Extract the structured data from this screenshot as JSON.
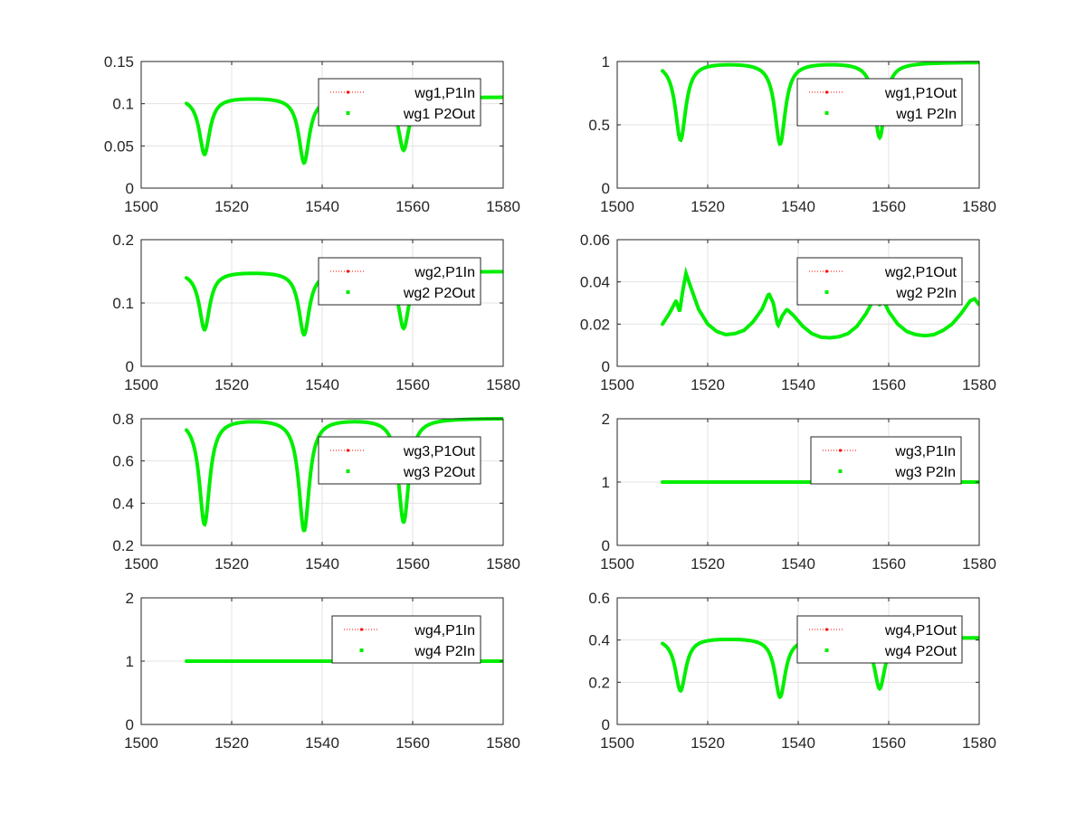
{
  "chart_data": [
    {
      "type": "line",
      "grid": true,
      "legend_position": "top-right",
      "xlim": [
        1500,
        1580
      ],
      "ylim": [
        0,
        0.15
      ],
      "xticks": [
        1500,
        1520,
        1540,
        1560,
        1580
      ],
      "xtick_labels": [
        "1500",
        "1520",
        "1540",
        "1560",
        "1580"
      ],
      "yticks": [
        0,
        0.05,
        0.1,
        0.15
      ],
      "ytick_labels": [
        "0",
        "0.05",
        "0.1",
        "0.15"
      ],
      "x_range": [
        1510,
        1580
      ],
      "base": 0.108,
      "shape": "dips",
      "dips": [
        {
          "x": 1514,
          "y": 0.04
        },
        {
          "x": 1536,
          "y": 0.03
        },
        {
          "x": 1558,
          "y": 0.045
        }
      ],
      "series": [
        {
          "name": "wg1,P1In",
          "color": "#ff0000",
          "style": "dotted"
        },
        {
          "name": "wg1 P2Out",
          "color": "#00ee00",
          "style": "markers"
        }
      ]
    },
    {
      "type": "line",
      "grid": true,
      "legend_position": "top-right",
      "xlim": [
        1500,
        1580
      ],
      "ylim": [
        0,
        1
      ],
      "xticks": [
        1500,
        1520,
        1540,
        1560,
        1580
      ],
      "xtick_labels": [
        "1500",
        "1520",
        "1540",
        "1560",
        "1580"
      ],
      "yticks": [
        0,
        0.5,
        1
      ],
      "ytick_labels": [
        "0",
        "0.5",
        "1"
      ],
      "x_range": [
        1510,
        1580
      ],
      "base": 0.995,
      "shape": "dips",
      "dips": [
        {
          "x": 1514,
          "y": 0.38
        },
        {
          "x": 1536,
          "y": 0.35
        },
        {
          "x": 1558,
          "y": 0.4
        }
      ],
      "series": [
        {
          "name": "wg1,P1Out",
          "color": "#ff0000",
          "style": "dotted"
        },
        {
          "name": "wg1 P2In",
          "color": "#00ee00",
          "style": "markers"
        }
      ]
    },
    {
      "type": "line",
      "grid": true,
      "legend_position": "top-right",
      "xlim": [
        1500,
        1580
      ],
      "ylim": [
        0,
        0.2
      ],
      "xticks": [
        1500,
        1520,
        1540,
        1560,
        1580
      ],
      "xtick_labels": [
        "1500",
        "1520",
        "1540",
        "1560",
        "1580"
      ],
      "yticks": [
        0,
        0.1,
        0.2
      ],
      "ytick_labels": [
        "0",
        "0.1",
        "0.2"
      ],
      "x_range": [
        1510,
        1580
      ],
      "base": 0.15,
      "shape": "dips",
      "dips": [
        {
          "x": 1514,
          "y": 0.058
        },
        {
          "x": 1536,
          "y": 0.05
        },
        {
          "x": 1558,
          "y": 0.06
        }
      ],
      "series": [
        {
          "name": "wg2,P1In",
          "color": "#ff0000",
          "style": "dotted"
        },
        {
          "name": "wg2 P2Out",
          "color": "#00ee00",
          "style": "markers"
        }
      ]
    },
    {
      "type": "line",
      "grid": true,
      "legend_position": "top-right",
      "xlim": [
        1500,
        1580
      ],
      "ylim": [
        0,
        0.06
      ],
      "xticks": [
        1500,
        1520,
        1540,
        1560,
        1580
      ],
      "xtick_labels": [
        "1500",
        "1520",
        "1540",
        "1560",
        "1580"
      ],
      "yticks": [
        0,
        0.02,
        0.04,
        0.06
      ],
      "ytick_labels": [
        "0",
        "0.02",
        "0.04",
        "0.06"
      ],
      "x_range": [
        1510,
        1580
      ],
      "shape": "points",
      "points": [
        [
          1510,
          0.02
        ],
        [
          1511.5,
          0.025
        ],
        [
          1513,
          0.031
        ],
        [
          1513.8,
          0.026
        ],
        [
          1514.5,
          0.036
        ],
        [
          1515.2,
          0.044
        ],
        [
          1516.5,
          0.036
        ],
        [
          1518,
          0.027
        ],
        [
          1520,
          0.02
        ],
        [
          1522,
          0.0165
        ],
        [
          1524,
          0.015
        ],
        [
          1526,
          0.0155
        ],
        [
          1528,
          0.017
        ],
        [
          1530,
          0.021
        ],
        [
          1532,
          0.027
        ],
        [
          1533.5,
          0.0345
        ],
        [
          1534.5,
          0.03
        ],
        [
          1535.5,
          0.019
        ],
        [
          1536.5,
          0.024
        ],
        [
          1537.5,
          0.027
        ],
        [
          1539,
          0.024
        ],
        [
          1541,
          0.019
        ],
        [
          1543,
          0.0155
        ],
        [
          1545,
          0.0138
        ],
        [
          1547,
          0.0135
        ],
        [
          1549,
          0.014
        ],
        [
          1551,
          0.0155
        ],
        [
          1553,
          0.019
        ],
        [
          1555,
          0.025
        ],
        [
          1556.5,
          0.031
        ],
        [
          1557.5,
          0.034
        ],
        [
          1558,
          0.029
        ],
        [
          1558.7,
          0.032
        ],
        [
          1560,
          0.026
        ],
        [
          1562,
          0.02
        ],
        [
          1564,
          0.0165
        ],
        [
          1566,
          0.015
        ],
        [
          1568,
          0.0145
        ],
        [
          1570,
          0.015
        ],
        [
          1572,
          0.017
        ],
        [
          1574,
          0.02
        ],
        [
          1576,
          0.025
        ],
        [
          1578,
          0.031
        ],
        [
          1579,
          0.032
        ],
        [
          1580,
          0.029
        ]
      ],
      "series": [
        {
          "name": "wg2,P1Out",
          "color": "#ff0000",
          "style": "dotted"
        },
        {
          "name": "wg2 P2In",
          "color": "#00ee00",
          "style": "markers"
        }
      ]
    },
    {
      "type": "line",
      "grid": true,
      "legend_position": "top-right",
      "xlim": [
        1500,
        1580
      ],
      "ylim": [
        0.2,
        0.8
      ],
      "xticks": [
        1500,
        1520,
        1540,
        1560,
        1580
      ],
      "xtick_labels": [
        "1500",
        "1520",
        "1540",
        "1560",
        "1580"
      ],
      "yticks": [
        0.2,
        0.4,
        0.6,
        0.8
      ],
      "ytick_labels": [
        "0.2",
        "0.4",
        "0.6",
        "0.8"
      ],
      "x_range": [
        1510,
        1580
      ],
      "base": 0.803,
      "shape": "dips",
      "dips": [
        {
          "x": 1514,
          "y": 0.3
        },
        {
          "x": 1536,
          "y": 0.27
        },
        {
          "x": 1558,
          "y": 0.31
        }
      ],
      "series": [
        {
          "name": "wg3,P1Out",
          "color": "#ff0000",
          "style": "dotted"
        },
        {
          "name": "wg3 P2Out",
          "color": "#00ee00",
          "style": "markers"
        }
      ]
    },
    {
      "type": "line",
      "grid": true,
      "legend_position": "top-right",
      "xlim": [
        1500,
        1580
      ],
      "ylim": [
        0,
        2
      ],
      "xticks": [
        1500,
        1520,
        1540,
        1560,
        1580
      ],
      "xtick_labels": [
        "1500",
        "1520",
        "1540",
        "1560",
        "1580"
      ],
      "yticks": [
        0,
        1,
        2
      ],
      "ytick_labels": [
        "0",
        "1",
        "2"
      ],
      "x_range": [
        1510,
        1580
      ],
      "shape": "flat",
      "level": 1,
      "series": [
        {
          "name": "wg3,P1In",
          "color": "#ff0000",
          "style": "dotted"
        },
        {
          "name": "wg3 P2In",
          "color": "#00ee00",
          "style": "markers"
        }
      ]
    },
    {
      "type": "line",
      "grid": true,
      "legend_position": "top-right",
      "xlim": [
        1500,
        1580
      ],
      "ylim": [
        0,
        2
      ],
      "xticks": [
        1500,
        1520,
        1540,
        1560,
        1580
      ],
      "xtick_labels": [
        "1500",
        "1520",
        "1540",
        "1560",
        "1580"
      ],
      "yticks": [
        0,
        1,
        2
      ],
      "ytick_labels": [
        "0",
        "1",
        "2"
      ],
      "x_range": [
        1510,
        1580
      ],
      "shape": "flat",
      "level": 1,
      "series": [
        {
          "name": "wg4,P1In",
          "color": "#ff0000",
          "style": "dotted"
        },
        {
          "name": "wg4 P2In",
          "color": "#00ee00",
          "style": "markers"
        }
      ]
    },
    {
      "type": "line",
      "grid": true,
      "legend_position": "top-right",
      "xlim": [
        1500,
        1580
      ],
      "ylim": [
        0,
        0.6
      ],
      "xticks": [
        1500,
        1520,
        1540,
        1560,
        1580
      ],
      "xtick_labels": [
        "1500",
        "1520",
        "1540",
        "1560",
        "1580"
      ],
      "yticks": [
        0,
        0.2,
        0.4,
        0.6
      ],
      "ytick_labels": [
        "0",
        "0.2",
        "0.4",
        "0.6"
      ],
      "x_range": [
        1510,
        1580
      ],
      "base": 0.412,
      "shape": "dips",
      "dips": [
        {
          "x": 1514,
          "y": 0.16
        },
        {
          "x": 1536,
          "y": 0.13
        },
        {
          "x": 1558,
          "y": 0.17
        }
      ],
      "series": [
        {
          "name": "wg4,P1Out",
          "color": "#ff0000",
          "style": "dotted"
        },
        {
          "name": "wg4 P2Out",
          "color": "#00ee00",
          "style": "markers"
        }
      ]
    }
  ]
}
